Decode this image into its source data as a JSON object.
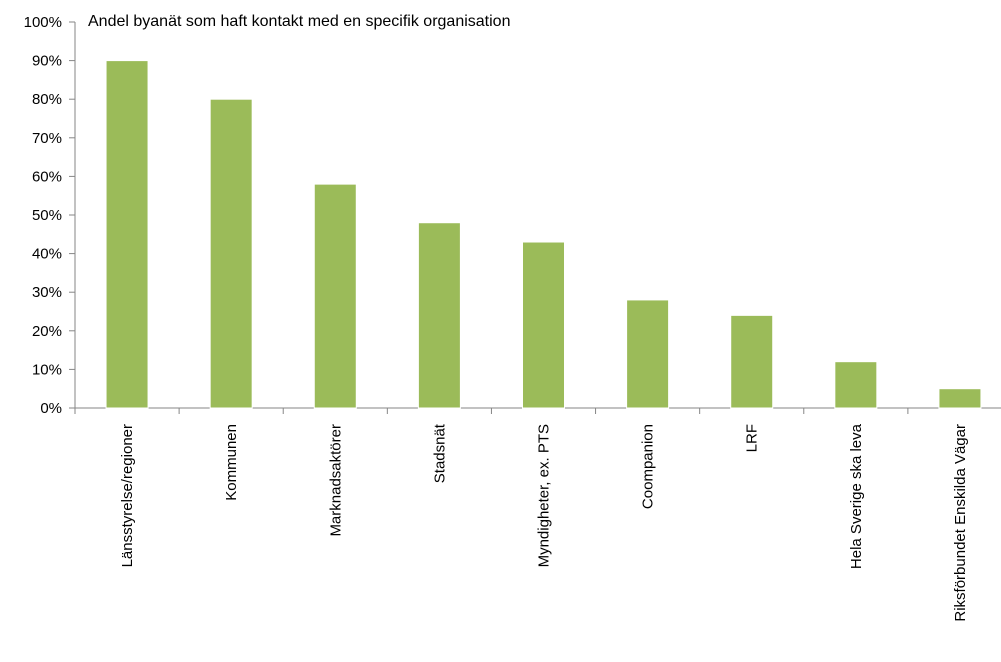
{
  "chart_data": {
    "type": "bar",
    "title": "Andel byanät som haft kontakt med en specifik organisation",
    "xlabel": "",
    "ylabel": "",
    "categories": [
      "Länsstyrelse/regioner",
      "Kommunen",
      "Marknadsaktörer",
      "Stadsnät",
      "Myndigheter, ex. PTS",
      "Coompanion",
      "LRF",
      "Hela Sverige ska leva",
      "Riksförbundet Enskilda Vägar"
    ],
    "values": [
      90,
      80,
      58,
      48,
      43,
      28,
      24,
      12,
      5
    ],
    "ylim": [
      0,
      100
    ],
    "yticks": [
      0,
      10,
      20,
      30,
      40,
      50,
      60,
      70,
      80,
      90,
      100
    ],
    "ytick_labels": [
      "0%",
      "10%",
      "20%",
      "30%",
      "40%",
      "50%",
      "60%",
      "70%",
      "80%",
      "90%",
      "100%"
    ],
    "grid": false,
    "legend": "none",
    "colors": {
      "bar": "#9BBB59",
      "axis": "#868686"
    }
  }
}
